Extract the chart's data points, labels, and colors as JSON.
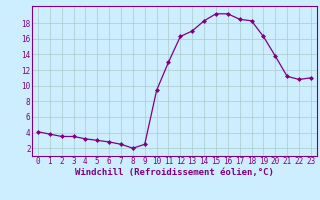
{
  "x": [
    0,
    1,
    2,
    3,
    4,
    5,
    6,
    7,
    8,
    9,
    10,
    11,
    12,
    13,
    14,
    15,
    16,
    17,
    18,
    19,
    20,
    21,
    22,
    23
  ],
  "y": [
    4.1,
    3.8,
    3.5,
    3.5,
    3.2,
    3.0,
    2.8,
    2.5,
    2.0,
    2.5,
    9.4,
    13.0,
    16.3,
    17.0,
    18.3,
    19.2,
    19.2,
    18.5,
    18.3,
    16.3,
    13.8,
    11.2,
    10.8,
    11.0
  ],
  "line_color": "#800080",
  "marker": "D",
  "marker_size": 2.0,
  "bg_color": "#cceeff",
  "grid_color": "#aacccc",
  "xlabel": "Windchill (Refroidissement éolien,°C)",
  "xlabel_fontsize": 6.5,
  "yticks": [
    2,
    4,
    6,
    8,
    10,
    12,
    14,
    16,
    18
  ],
  "xticks": [
    0,
    1,
    2,
    3,
    4,
    5,
    6,
    7,
    8,
    9,
    10,
    11,
    12,
    13,
    14,
    15,
    16,
    17,
    18,
    19,
    20,
    21,
    22,
    23
  ],
  "xlim": [
    -0.5,
    23.5
  ],
  "ylim": [
    1.0,
    20.2
  ],
  "tick_color": "#800080",
  "tick_fontsize": 5.5,
  "label_color": "#800080",
  "spine_color": "#800080"
}
